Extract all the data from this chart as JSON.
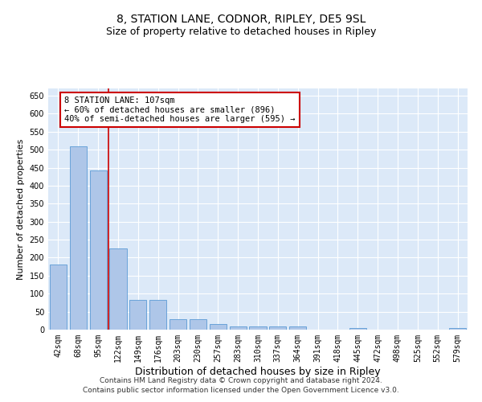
{
  "title1": "8, STATION LANE, CODNOR, RIPLEY, DE5 9SL",
  "title2": "Size of property relative to detached houses in Ripley",
  "xlabel": "Distribution of detached houses by size in Ripley",
  "ylabel": "Number of detached properties",
  "categories": [
    "42sqm",
    "68sqm",
    "95sqm",
    "122sqm",
    "149sqm",
    "176sqm",
    "203sqm",
    "230sqm",
    "257sqm",
    "283sqm",
    "310sqm",
    "337sqm",
    "364sqm",
    "391sqm",
    "418sqm",
    "445sqm",
    "472sqm",
    "498sqm",
    "525sqm",
    "552sqm",
    "579sqm"
  ],
  "values": [
    180,
    510,
    443,
    225,
    83,
    83,
    30,
    28,
    15,
    8,
    8,
    8,
    8,
    0,
    0,
    5,
    0,
    0,
    0,
    0,
    5
  ],
  "bar_color": "#aec6e8",
  "bar_edge_color": "#5b9bd5",
  "vline_x": 2.5,
  "vline_color": "#cc0000",
  "annotation_text": "8 STATION LANE: 107sqm\n← 60% of detached houses are smaller (896)\n40% of semi-detached houses are larger (595) →",
  "annotation_box_color": "#ffffff",
  "annotation_box_edge_color": "#cc0000",
  "ylim": [
    0,
    670
  ],
  "yticks": [
    0,
    50,
    100,
    150,
    200,
    250,
    300,
    350,
    400,
    450,
    500,
    550,
    600,
    650
  ],
  "bg_color": "#dce9f8",
  "footer": "Contains HM Land Registry data © Crown copyright and database right 2024.\nContains public sector information licensed under the Open Government Licence v3.0.",
  "title1_fontsize": 10,
  "title2_fontsize": 9,
  "xlabel_fontsize": 9,
  "ylabel_fontsize": 8,
  "annotation_fontsize": 7.5,
  "footer_fontsize": 6.5,
  "tick_fontsize": 7
}
